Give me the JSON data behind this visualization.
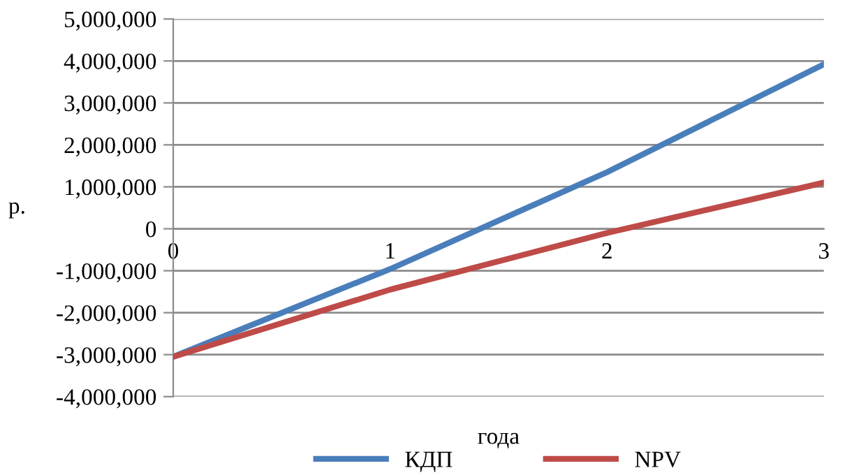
{
  "chart_data": {
    "type": "line",
    "xlabel": "года",
    "ylabel": "р.",
    "x": [
      0,
      1,
      2,
      3
    ],
    "series": [
      {
        "name": "КДП",
        "color": "#4a7ebb",
        "values": [
          -3050000,
          -960000,
          1350000,
          3920000
        ]
      },
      {
        "name": "NPV",
        "color": "#be4b48",
        "values": [
          -3050000,
          -1450000,
          -100000,
          1100000
        ]
      }
    ],
    "xlim": [
      0,
      3
    ],
    "xticks": [
      0,
      1,
      2,
      3
    ],
    "ylim": [
      -4000000,
      5000000
    ],
    "yticks": [
      {
        "value": -4000000,
        "label": "-4,000,000"
      },
      {
        "value": -3000000,
        "label": "-3,000,000"
      },
      {
        "value": -2000000,
        "label": "-2,000,000"
      },
      {
        "value": -1000000,
        "label": "-1,000,000"
      },
      0,
      {
        "value": 1000000,
        "label": "1,000,000"
      },
      {
        "value": 2000000,
        "label": "2,000,000"
      },
      {
        "value": 3000000,
        "label": "3,000,000"
      },
      {
        "value": 4000000,
        "label": "4,000,000"
      },
      {
        "value": 5000000,
        "label": "5,000,000"
      }
    ],
    "grid": "y",
    "legend": "bottom",
    "marker": "none",
    "line_style": "solid"
  }
}
